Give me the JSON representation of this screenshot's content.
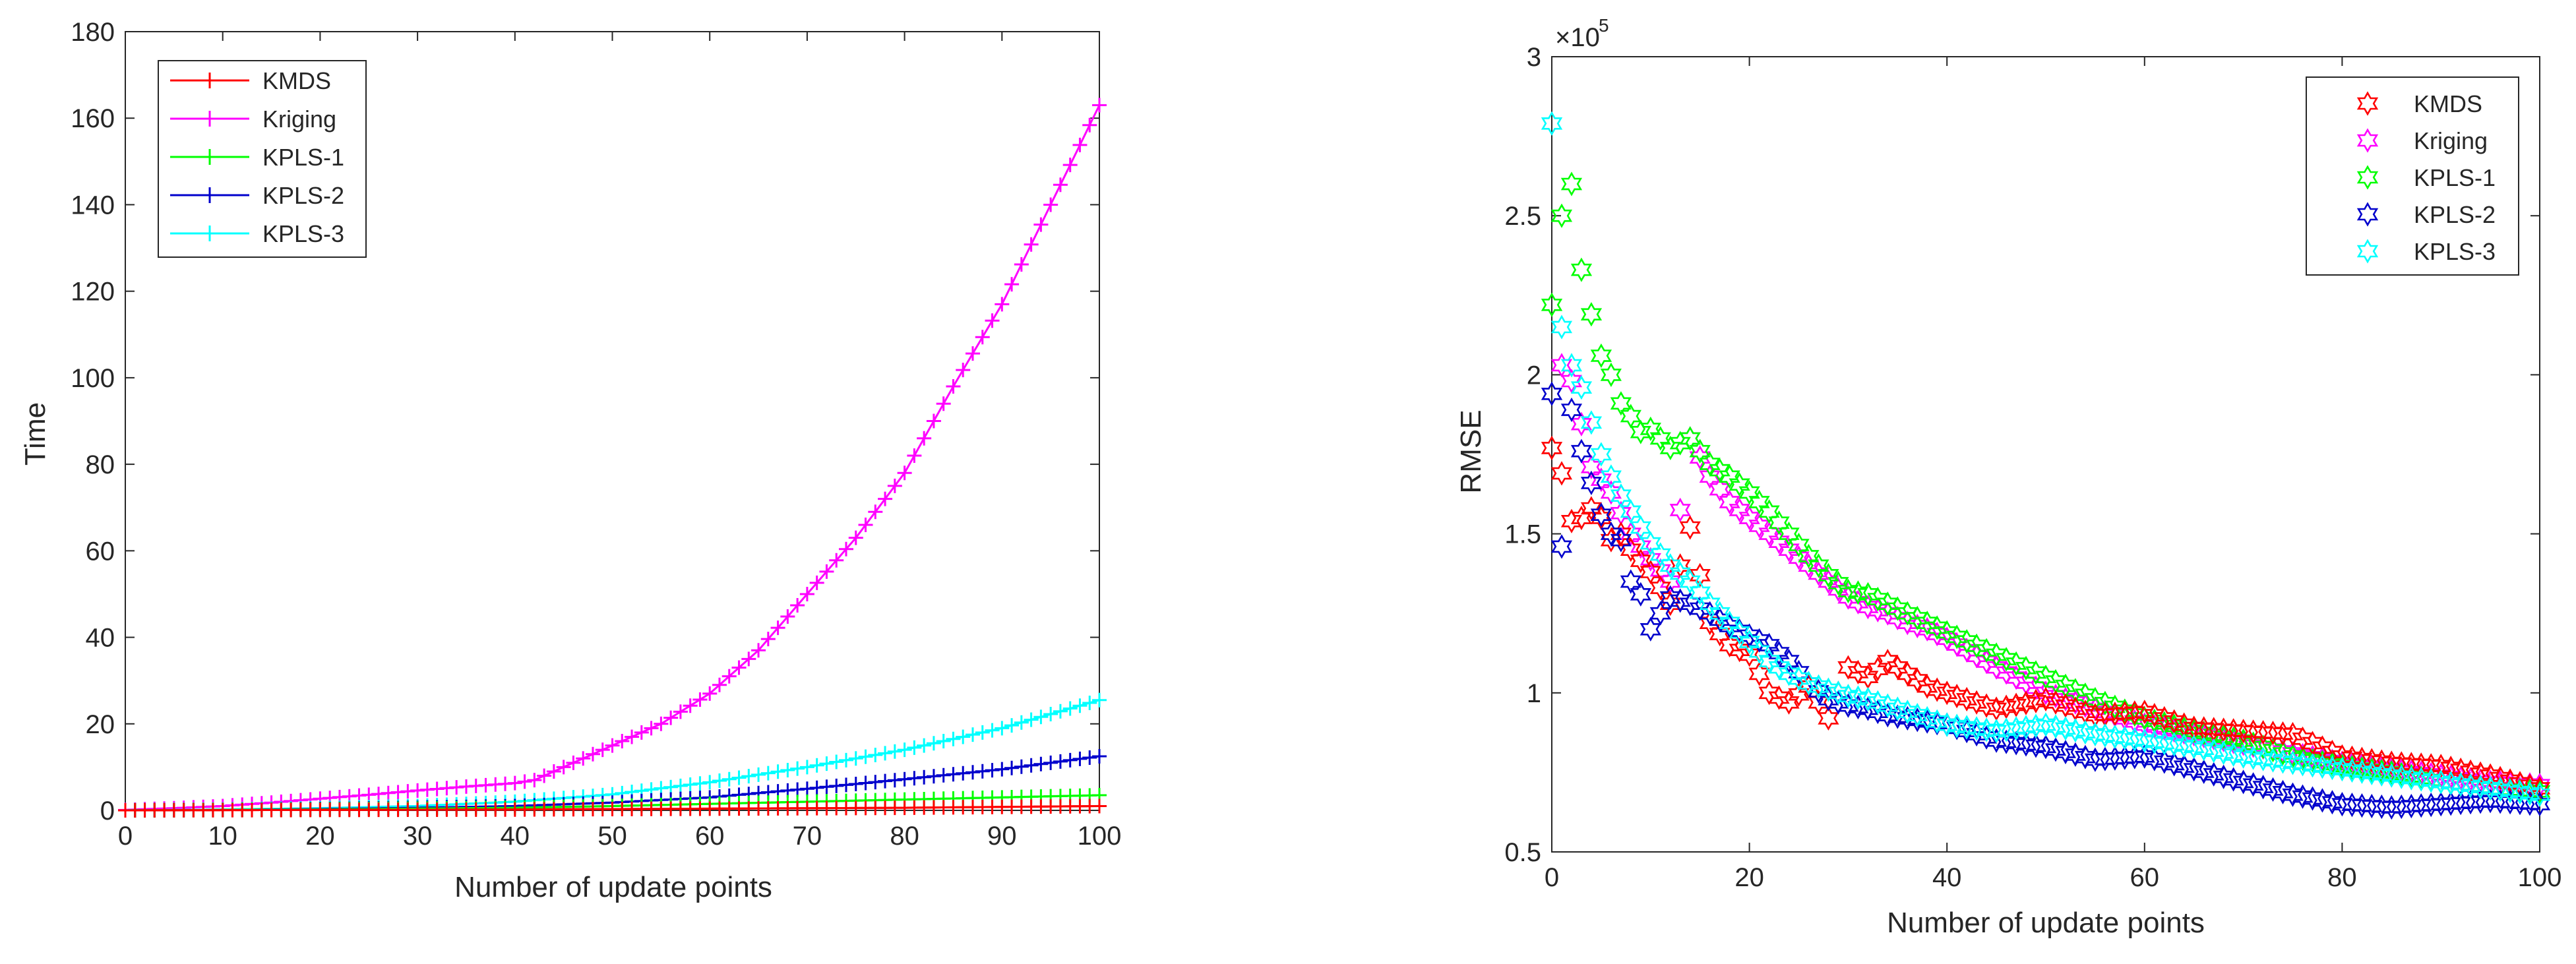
{
  "chart_data": [
    {
      "type": "line",
      "title": "",
      "xlabel": "Number of update points",
      "ylabel": "Time",
      "xlim": [
        0,
        100
      ],
      "ylim": [
        0,
        180
      ],
      "xticks": [
        0,
        10,
        20,
        30,
        40,
        50,
        60,
        70,
        80,
        90,
        100
      ],
      "yticks": [
        0,
        20,
        40,
        60,
        80,
        100,
        120,
        140,
        160,
        180
      ],
      "xtick_labels": [
        "0",
        "10",
        "20",
        "30",
        "40",
        "50",
        "60",
        "70",
        "80",
        "90",
        "100"
      ],
      "ytick_labels": [
        "0",
        "20",
        "40",
        "60",
        "80",
        "100",
        "120",
        "140",
        "160",
        "180"
      ],
      "legend_position": "top-left",
      "grid": false,
      "series": [
        {
          "name": "KMDS",
          "color": "#ff0000",
          "marker": "plus",
          "x": [
            0,
            10,
            20,
            30,
            40,
            50,
            60,
            70,
            80,
            90,
            100
          ],
          "values": [
            0,
            0.05,
            0.1,
            0.15,
            0.2,
            0.3,
            0.4,
            0.5,
            0.6,
            0.8,
            1.0
          ]
        },
        {
          "name": "Kriging",
          "color": "#ff00ff",
          "marker": "plus",
          "x": [
            0,
            5,
            10,
            15,
            20,
            25,
            30,
            35,
            40,
            42,
            45,
            50,
            55,
            60,
            65,
            70,
            75,
            80,
            85,
            90,
            95,
            100
          ],
          "values": [
            0.1,
            0.5,
            1.0,
            1.8,
            2.7,
            3.6,
            4.6,
            5.5,
            6.3,
            7.0,
            10.0,
            15.0,
            20.0,
            27.0,
            37.0,
            50.0,
            63.0,
            78.0,
            98.0,
            117.0,
            140.0,
            163.0
          ]
        },
        {
          "name": "KPLS-1",
          "color": "#00ff00",
          "marker": "plus",
          "x": [
            0,
            10,
            20,
            30,
            40,
            50,
            60,
            70,
            80,
            90,
            100
          ],
          "values": [
            0,
            0.1,
            0.2,
            0.4,
            0.6,
            1.0,
            1.5,
            2.0,
            2.5,
            3.0,
            3.5
          ]
        },
        {
          "name": "KPLS-2",
          "color": "#0000cc",
          "marker": "plus",
          "x": [
            0,
            10,
            20,
            30,
            40,
            50,
            60,
            70,
            80,
            90,
            100
          ],
          "values": [
            0,
            0.1,
            0.3,
            0.6,
            1.0,
            1.8,
            3.0,
            5.0,
            7.2,
            9.5,
            12.5
          ]
        },
        {
          "name": "KPLS-3",
          "color": "#00ffff",
          "marker": "plus",
          "x": [
            0,
            10,
            20,
            30,
            40,
            50,
            60,
            70,
            80,
            90,
            100
          ],
          "values": [
            0,
            0.2,
            0.5,
            1.0,
            2.0,
            3.7,
            6.5,
            10.0,
            14.0,
            19.0,
            25.5
          ]
        }
      ]
    },
    {
      "type": "scatter",
      "title": "",
      "xlabel": "Number of update points",
      "ylabel": "RMSE",
      "y_exponent_label": "×10",
      "y_exponent_power": "5",
      "xlim": [
        0,
        100
      ],
      "ylim": [
        0.5,
        3.0
      ],
      "xticks": [
        0,
        20,
        40,
        60,
        80,
        100
      ],
      "yticks": [
        0.5,
        1.0,
        1.5,
        2.0,
        2.5,
        3.0
      ],
      "xtick_labels": [
        "0",
        "20",
        "40",
        "60",
        "80",
        "100"
      ],
      "ytick_labels": [
        "0.5",
        "1",
        "1.5",
        "2",
        "2.5",
        "3"
      ],
      "legend_position": "top-right",
      "grid": false,
      "series": [
        {
          "name": "KMDS",
          "color": "#ff0000",
          "marker": "hexagram",
          "x": [
            0,
            1,
            2,
            3,
            4,
            5,
            6,
            7,
            8,
            10,
            12,
            14,
            16,
            18,
            20,
            22,
            24,
            26,
            28,
            30,
            32,
            34,
            36,
            38,
            40,
            45,
            50,
            55,
            60,
            65,
            70,
            75,
            80,
            85,
            90,
            95,
            100
          ],
          "values": [
            1.77,
            1.69,
            1.54,
            1.55,
            1.58,
            1.55,
            1.48,
            1.5,
            1.45,
            1.38,
            1.28,
            1.52,
            1.22,
            1.15,
            1.12,
            1.0,
            0.97,
            1.02,
            0.92,
            1.08,
            1.05,
            1.1,
            1.06,
            1.02,
            1.0,
            0.95,
            0.98,
            0.93,
            0.94,
            0.89,
            0.88,
            0.87,
            0.8,
            0.78,
            0.77,
            0.74,
            0.7
          ]
        },
        {
          "name": "Kriging",
          "color": "#ff00ff",
          "marker": "hexagram",
          "x": [
            1,
            2,
            4,
            6,
            8,
            10,
            12,
            14,
            16,
            18,
            20,
            22,
            24,
            26,
            28,
            30,
            32,
            34,
            36,
            38,
            40,
            45,
            50,
            55,
            60,
            65,
            70,
            75,
            80,
            85,
            90,
            95,
            100
          ],
          "values": [
            2.03,
            1.98,
            1.71,
            1.63,
            1.5,
            1.42,
            1.35,
            1.8,
            1.68,
            1.6,
            1.55,
            1.5,
            1.45,
            1.4,
            1.35,
            1.3,
            1.27,
            1.25,
            1.22,
            1.2,
            1.17,
            1.08,
            1.0,
            0.95,
            0.9,
            0.87,
            0.84,
            0.81,
            0.78,
            0.76,
            0.74,
            0.72,
            0.71
          ]
        },
        {
          "name": "KPLS-1",
          "color": "#00ff00",
          "marker": "hexagram",
          "x": [
            0,
            1,
            2,
            3,
            4,
            5,
            6,
            7,
            8,
            9,
            10,
            12,
            14,
            16,
            18,
            20,
            22,
            24,
            26,
            28,
            30,
            32,
            34,
            36,
            38,
            40,
            45,
            50,
            55,
            60,
            65,
            70,
            75,
            80,
            85,
            90,
            95,
            100
          ],
          "values": [
            2.22,
            2.5,
            2.6,
            2.33,
            2.19,
            2.06,
            2.0,
            1.91,
            1.87,
            1.82,
            1.83,
            1.77,
            1.8,
            1.72,
            1.68,
            1.63,
            1.57,
            1.5,
            1.43,
            1.37,
            1.32,
            1.31,
            1.28,
            1.25,
            1.22,
            1.19,
            1.12,
            1.05,
            0.98,
            0.92,
            0.88,
            0.85,
            0.8,
            0.77,
            0.75,
            0.72,
            0.7,
            0.69
          ]
        },
        {
          "name": "KPLS-2",
          "color": "#0000cc",
          "marker": "hexagram",
          "x": [
            0,
            1,
            2,
            3,
            4,
            5,
            6,
            7,
            8,
            9,
            10,
            12,
            14,
            16,
            18,
            20,
            22,
            24,
            26,
            28,
            30,
            32,
            34,
            36,
            38,
            40,
            45,
            50,
            55,
            60,
            65,
            70,
            75,
            80,
            85,
            90,
            95,
            100
          ],
          "values": [
            1.94,
            1.46,
            1.89,
            1.76,
            1.66,
            1.56,
            1.5,
            1.48,
            1.35,
            1.31,
            1.2,
            1.3,
            1.28,
            1.25,
            1.21,
            1.18,
            1.15,
            1.1,
            1.03,
            0.98,
            0.96,
            0.95,
            0.93,
            0.92,
            0.91,
            0.9,
            0.85,
            0.83,
            0.79,
            0.8,
            0.76,
            0.72,
            0.68,
            0.65,
            0.64,
            0.65,
            0.66,
            0.65
          ]
        },
        {
          "name": "KPLS-3",
          "color": "#00ffff",
          "marker": "hexagram",
          "x": [
            0,
            1,
            2,
            3,
            4,
            5,
            6,
            7,
            8,
            9,
            10,
            12,
            14,
            16,
            18,
            20,
            22,
            24,
            26,
            28,
            30,
            32,
            34,
            36,
            38,
            40,
            45,
            50,
            55,
            60,
            65,
            70,
            75,
            80,
            85,
            90,
            95,
            100
          ],
          "values": [
            2.79,
            2.15,
            2.03,
            1.96,
            1.85,
            1.75,
            1.68,
            1.62,
            1.57,
            1.52,
            1.47,
            1.4,
            1.35,
            1.28,
            1.22,
            1.16,
            1.1,
            1.06,
            1.03,
            1.01,
            0.99,
            0.98,
            0.96,
            0.94,
            0.92,
            0.9,
            0.88,
            0.9,
            0.87,
            0.85,
            0.83,
            0.8,
            0.78,
            0.76,
            0.74,
            0.72,
            0.7,
            0.68
          ]
        }
      ]
    }
  ]
}
